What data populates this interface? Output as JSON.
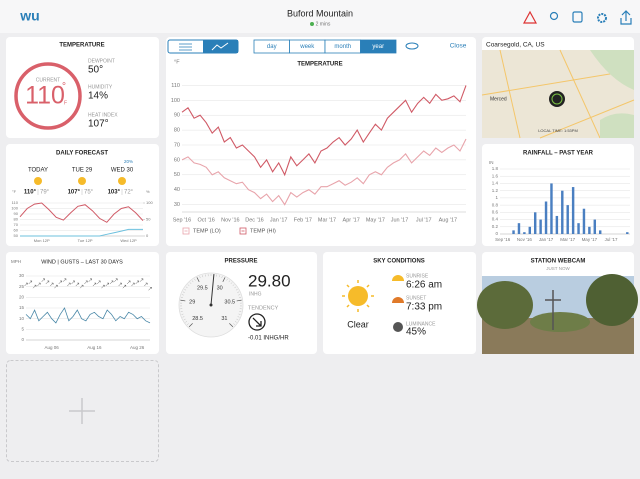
{
  "header": {
    "logo": "wu",
    "title": "Buford Mountain",
    "updated": "2 mins"
  },
  "temperature": {
    "title": "TEMPERATURE",
    "current_label": "CURRENT",
    "current": 110,
    "degree": "°",
    "unit": "F",
    "dewpoint_label": "DEWPOINT",
    "dewpoint": "50°",
    "humidity_label": "HUMIDITY",
    "humidity": "14%",
    "heat_index_label": "HEAT INDEX",
    "heat_index": "107°"
  },
  "forecast": {
    "title": "DAILY FORECAST",
    "precip": "20%",
    "days": [
      {
        "name": "TODAY",
        "hi": "110°",
        "lo": "79°"
      },
      {
        "name": "TUE 29",
        "hi": "107°",
        "lo": "75°"
      },
      {
        "name": "WED 30",
        "hi": "103°",
        "lo": "72°"
      }
    ]
  },
  "wind": {
    "title": "WIND | GUSTS – LAST 30 DAYS"
  },
  "toolbar": {
    "ranges": [
      "day",
      "week",
      "month",
      "year"
    ],
    "selected": 3,
    "close": "Close"
  },
  "pressure": {
    "title": "PRESSURE",
    "reading": {
      "value": 29.8,
      "label": "29.80"
    },
    "unit": "INHG",
    "ticks": [
      28.5,
      29,
      29.5,
      30,
      30.5,
      31
    ],
    "tendency_label": "TENDENCY",
    "tendency": "-0.01 INHG/HR"
  },
  "sky": {
    "title": "SKY CONDITIONS",
    "condition": "Clear",
    "sunrise_label": "SUNRISE",
    "sunrise": "6:26 am",
    "sunset_label": "SUNSET",
    "sunset": "7:33 pm",
    "luminance_label": "LUMINANCE",
    "luminance": "45%"
  },
  "map": {
    "location": "Coarsegold, CA, US",
    "city": "Merced",
    "local_time": "LOCAL TIME: 1:53PM"
  },
  "webcam": {
    "title": "STATION WEBCAM",
    "updated": "JUST NOW"
  },
  "chart_data": [
    {
      "type": "line",
      "title": "TEMPERATURE",
      "y_label": "°F",
      "categories": [
        "Sep '16",
        null,
        null,
        null,
        "Oct '16",
        null,
        null,
        null,
        "Nov '16",
        null,
        null,
        null,
        "Dec '16",
        null,
        null,
        null,
        "Jan '17",
        null,
        null,
        null,
        "Feb '17",
        null,
        null,
        null,
        "Mar '17",
        null,
        null,
        null,
        "Apr '17",
        null,
        null,
        null,
        "May '17",
        null,
        null,
        null,
        "Jun '17",
        null,
        null,
        null,
        "Jul '17",
        null,
        null,
        null,
        "Aug '17",
        null,
        null,
        null
      ],
      "series": [
        {
          "name": "TEMP (LO)",
          "color": "#e8a4ab",
          "values": [
            60,
            62,
            58,
            57,
            55,
            50,
            52,
            48,
            46,
            44,
            45,
            40,
            38,
            34,
            37,
            32,
            36,
            30,
            38,
            35,
            38,
            40,
            37,
            42,
            42,
            44,
            46,
            43,
            45,
            48,
            44,
            50,
            52,
            50,
            55,
            58,
            60,
            64,
            58,
            62,
            66,
            63,
            68,
            65,
            68,
            70,
            66,
            74
          ]
        },
        {
          "name": "TEMP (HI)",
          "color": "#d05a66",
          "values": [
            92,
            95,
            88,
            90,
            85,
            78,
            82,
            72,
            75,
            68,
            70,
            66,
            62,
            55,
            60,
            52,
            58,
            50,
            62,
            56,
            60,
            64,
            58,
            66,
            68,
            72,
            75,
            70,
            74,
            80,
            72,
            78,
            84,
            80,
            88,
            92,
            96,
            100,
            92,
            98,
            102,
            98,
            104,
            100,
            101,
            103,
            99,
            110
          ]
        }
      ],
      "ylim": [
        25,
        115
      ],
      "yticks": [
        30,
        40,
        50,
        60,
        70,
        80,
        90,
        100,
        110
      ],
      "grid": true
    },
    {
      "type": "line",
      "y_label": "°F",
      "y2_label": "%",
      "categories": [
        null,
        null,
        null,
        "Mon 12P",
        null,
        null,
        null,
        null,
        null,
        "Tue 12P",
        null,
        null,
        null,
        null,
        null,
        "Wed 12P",
        null,
        null
      ],
      "series": [
        {
          "color": "#d05a66",
          "values": [
            85,
            100,
            108,
            110,
            98,
            84,
            79,
            92,
            104,
            107,
            96,
            82,
            75,
            90,
            100,
            103,
            92,
            78
          ]
        },
        {
          "color": "#6cc0de",
          "axis": "y2",
          "values": [
            0,
            0,
            0,
            0,
            0,
            0,
            0,
            0,
            0,
            0,
            0,
            0,
            5,
            10,
            15,
            20,
            20,
            20
          ]
        }
      ],
      "ylim": [
        50,
        110
      ],
      "yticks": [
        50,
        60,
        70,
        80,
        90,
        100,
        110
      ],
      "y2lim": [
        0,
        100
      ],
      "y2ticks": [
        0,
        50,
        100
      ],
      "grid": true
    },
    {
      "type": "line",
      "y_label": "MPH",
      "categories": [
        null,
        null,
        null,
        null,
        null,
        null,
        "Aug 06",
        null,
        null,
        null,
        null,
        null,
        null,
        null,
        null,
        null,
        "Aug 16",
        null,
        null,
        null,
        null,
        null,
        null,
        null,
        null,
        null,
        "Aug 26",
        null,
        null,
        null
      ],
      "series": [
        {
          "color": "#4a88a8",
          "values": [
            12,
            10,
            14,
            9,
            11,
            13,
            10,
            8,
            12,
            15,
            9,
            11,
            14,
            10,
            9,
            12,
            13,
            11,
            10,
            14,
            12,
            9,
            11,
            10,
            13,
            12,
            10,
            11,
            9,
            8
          ]
        },
        {
          "color": "#555555",
          "marker": "arrow",
          "values": [
            26,
            27,
            25,
            26,
            28,
            27,
            26,
            25,
            27,
            28,
            26,
            27,
            26,
            25,
            27,
            28,
            26,
            27,
            25,
            26,
            27,
            28,
            26,
            25,
            27,
            26,
            27,
            28,
            26,
            24
          ]
        }
      ],
      "ylim": [
        0,
        30
      ],
      "yticks": [
        0,
        5,
        10,
        15,
        20,
        25,
        30
      ],
      "grid": true
    },
    {
      "type": "bar",
      "title": "RAINFALL – PAST YEAR",
      "y_label": "IN",
      "color": "#4a7fc1",
      "categories": [
        "Sep '16",
        null,
        null,
        null,
        "Nov '16",
        null,
        null,
        null,
        "Jan '17",
        null,
        null,
        null,
        "Mar '17",
        null,
        null,
        null,
        "May '17",
        null,
        null,
        null,
        "Jul '17",
        null,
        null,
        null
      ],
      "values": [
        0,
        0,
        0.1,
        0.3,
        0.05,
        0.2,
        0.6,
        0.4,
        0.9,
        1.4,
        0.5,
        1.2,
        0.8,
        1.3,
        0.3,
        0.7,
        0.2,
        0.4,
        0.1,
        0,
        0,
        0,
        0,
        0.05
      ],
      "ylim": [
        0,
        1.8
      ],
      "yticks": [
        0,
        0.2,
        0.4,
        0.6,
        0.8,
        1,
        1.2,
        1.4,
        1.6,
        1.8
      ],
      "grid": true
    }
  ]
}
